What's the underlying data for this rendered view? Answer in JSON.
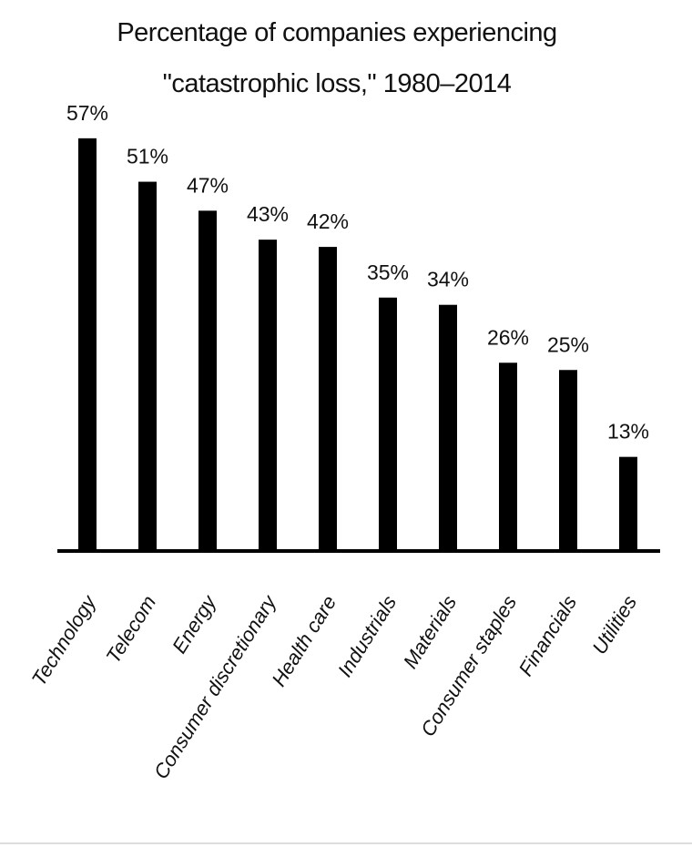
{
  "chart_data": {
    "type": "bar",
    "title": "Percentage of companies experiencing\n\"catastrophic loss,\" 1980–2014",
    "categories": [
      "Technology",
      "Telecom",
      "Energy",
      "Consumer discretionary",
      "Health care",
      "Industrials",
      "Materials",
      "Consumer staples",
      "Financials",
      "Utilities"
    ],
    "values": [
      57,
      51,
      47,
      43,
      42,
      35,
      34,
      26,
      25,
      13
    ],
    "value_labels": [
      "57%",
      "51%",
      "47%",
      "43%",
      "42%",
      "35%",
      "34%",
      "26%",
      "25%",
      "13%"
    ],
    "color": "#000000"
  }
}
